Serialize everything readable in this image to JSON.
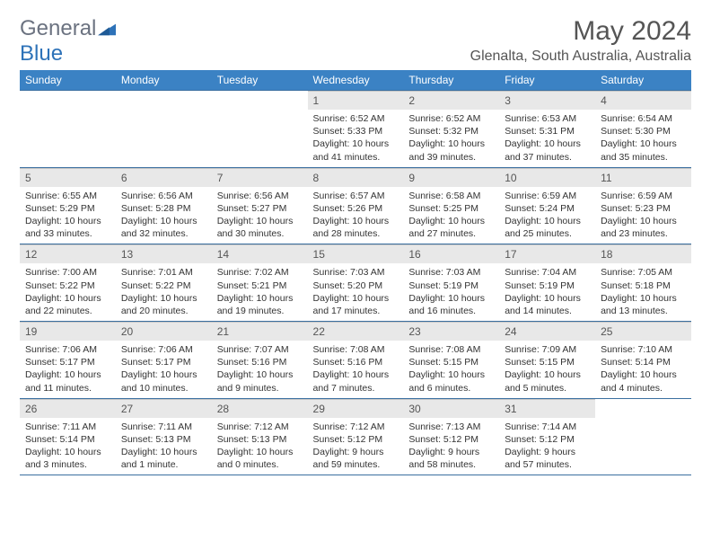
{
  "logo": {
    "part1": "General",
    "part2": "Blue"
  },
  "title": "May 2024",
  "subtitle": "Glenalta, South Australia, Australia",
  "colors": {
    "header_bg": "#3b82c4",
    "header_text": "#ffffff",
    "daynum_bg": "#e8e8e8",
    "border": "#3b6fa0",
    "body_text": "#333333",
    "title_text": "#555555",
    "logo_gray": "#6b7280",
    "logo_blue": "#2d72b8"
  },
  "weekdays": [
    "Sunday",
    "Monday",
    "Tuesday",
    "Wednesday",
    "Thursday",
    "Friday",
    "Saturday"
  ],
  "grid": [
    [
      null,
      null,
      null,
      {
        "n": "1",
        "sr": "6:52 AM",
        "ss": "5:33 PM",
        "dl": "10 hours and 41 minutes."
      },
      {
        "n": "2",
        "sr": "6:52 AM",
        "ss": "5:32 PM",
        "dl": "10 hours and 39 minutes."
      },
      {
        "n": "3",
        "sr": "6:53 AM",
        "ss": "5:31 PM",
        "dl": "10 hours and 37 minutes."
      },
      {
        "n": "4",
        "sr": "6:54 AM",
        "ss": "5:30 PM",
        "dl": "10 hours and 35 minutes."
      }
    ],
    [
      {
        "n": "5",
        "sr": "6:55 AM",
        "ss": "5:29 PM",
        "dl": "10 hours and 33 minutes."
      },
      {
        "n": "6",
        "sr": "6:56 AM",
        "ss": "5:28 PM",
        "dl": "10 hours and 32 minutes."
      },
      {
        "n": "7",
        "sr": "6:56 AM",
        "ss": "5:27 PM",
        "dl": "10 hours and 30 minutes."
      },
      {
        "n": "8",
        "sr": "6:57 AM",
        "ss": "5:26 PM",
        "dl": "10 hours and 28 minutes."
      },
      {
        "n": "9",
        "sr": "6:58 AM",
        "ss": "5:25 PM",
        "dl": "10 hours and 27 minutes."
      },
      {
        "n": "10",
        "sr": "6:59 AM",
        "ss": "5:24 PM",
        "dl": "10 hours and 25 minutes."
      },
      {
        "n": "11",
        "sr": "6:59 AM",
        "ss": "5:23 PM",
        "dl": "10 hours and 23 minutes."
      }
    ],
    [
      {
        "n": "12",
        "sr": "7:00 AM",
        "ss": "5:22 PM",
        "dl": "10 hours and 22 minutes."
      },
      {
        "n": "13",
        "sr": "7:01 AM",
        "ss": "5:22 PM",
        "dl": "10 hours and 20 minutes."
      },
      {
        "n": "14",
        "sr": "7:02 AM",
        "ss": "5:21 PM",
        "dl": "10 hours and 19 minutes."
      },
      {
        "n": "15",
        "sr": "7:03 AM",
        "ss": "5:20 PM",
        "dl": "10 hours and 17 minutes."
      },
      {
        "n": "16",
        "sr": "7:03 AM",
        "ss": "5:19 PM",
        "dl": "10 hours and 16 minutes."
      },
      {
        "n": "17",
        "sr": "7:04 AM",
        "ss": "5:19 PM",
        "dl": "10 hours and 14 minutes."
      },
      {
        "n": "18",
        "sr": "7:05 AM",
        "ss": "5:18 PM",
        "dl": "10 hours and 13 minutes."
      }
    ],
    [
      {
        "n": "19",
        "sr": "7:06 AM",
        "ss": "5:17 PM",
        "dl": "10 hours and 11 minutes."
      },
      {
        "n": "20",
        "sr": "7:06 AM",
        "ss": "5:17 PM",
        "dl": "10 hours and 10 minutes."
      },
      {
        "n": "21",
        "sr": "7:07 AM",
        "ss": "5:16 PM",
        "dl": "10 hours and 9 minutes."
      },
      {
        "n": "22",
        "sr": "7:08 AM",
        "ss": "5:16 PM",
        "dl": "10 hours and 7 minutes."
      },
      {
        "n": "23",
        "sr": "7:08 AM",
        "ss": "5:15 PM",
        "dl": "10 hours and 6 minutes."
      },
      {
        "n": "24",
        "sr": "7:09 AM",
        "ss": "5:15 PM",
        "dl": "10 hours and 5 minutes."
      },
      {
        "n": "25",
        "sr": "7:10 AM",
        "ss": "5:14 PM",
        "dl": "10 hours and 4 minutes."
      }
    ],
    [
      {
        "n": "26",
        "sr": "7:11 AM",
        "ss": "5:14 PM",
        "dl": "10 hours and 3 minutes."
      },
      {
        "n": "27",
        "sr": "7:11 AM",
        "ss": "5:13 PM",
        "dl": "10 hours and 1 minute."
      },
      {
        "n": "28",
        "sr": "7:12 AM",
        "ss": "5:13 PM",
        "dl": "10 hours and 0 minutes."
      },
      {
        "n": "29",
        "sr": "7:12 AM",
        "ss": "5:12 PM",
        "dl": "9 hours and 59 minutes."
      },
      {
        "n": "30",
        "sr": "7:13 AM",
        "ss": "5:12 PM",
        "dl": "9 hours and 58 minutes."
      },
      {
        "n": "31",
        "sr": "7:14 AM",
        "ss": "5:12 PM",
        "dl": "9 hours and 57 minutes."
      },
      null
    ]
  ]
}
